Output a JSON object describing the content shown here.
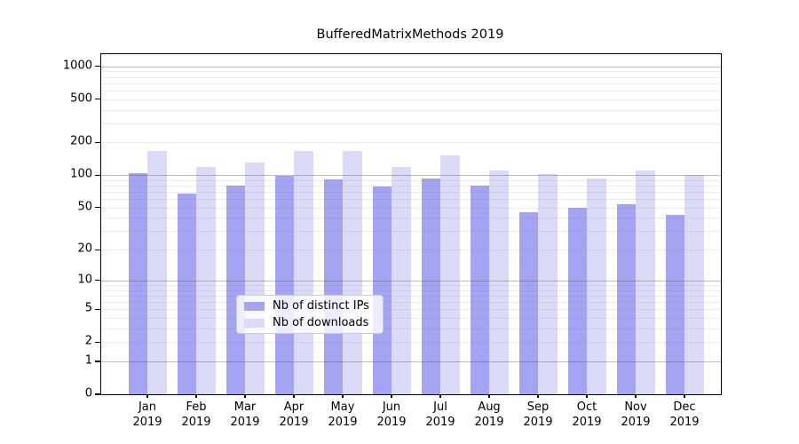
{
  "title": "BufferedMatrixMethods 2019",
  "chart_data": {
    "type": "bar",
    "title": "BufferedMatrixMethods 2019",
    "categories": [
      "Jan",
      "Feb",
      "Mar",
      "Apr",
      "May",
      "Jun",
      "Jul",
      "Aug",
      "Sep",
      "Oct",
      "Nov",
      "Dec"
    ],
    "category_year": "2019",
    "series": [
      {
        "name": "Nb of distinct IPs",
        "color": "#a4a4f2",
        "values": [
          105,
          68,
          80,
          99,
          92,
          78,
          93,
          80,
          45,
          50,
          54,
          43
        ]
      },
      {
        "name": "Nb of downloads",
        "color": "#dbdbf8",
        "values": [
          168,
          120,
          131,
          168,
          166,
          120,
          152,
          111,
          103,
          93,
          110,
          101
        ]
      }
    ],
    "xlabel": "",
    "ylabel": "",
    "y_scale": "log1p",
    "y_ticks": [
      0,
      1,
      2,
      5,
      10,
      20,
      50,
      100,
      200,
      500,
      1000
    ],
    "ylim": [
      0,
      1300
    ],
    "grid": "on",
    "major_grid_values": [
      1,
      10,
      100,
      1000
    ],
    "minor_grid_base": [
      2,
      3,
      4,
      5,
      6,
      7,
      8,
      9
    ],
    "legend_position": "lower center",
    "colors": {
      "major_grid": "rgba(70,70,70,0.35)",
      "minor_grid": "rgba(110,110,110,0.12)",
      "axis": "#000000",
      "background": "#ffffff"
    }
  }
}
